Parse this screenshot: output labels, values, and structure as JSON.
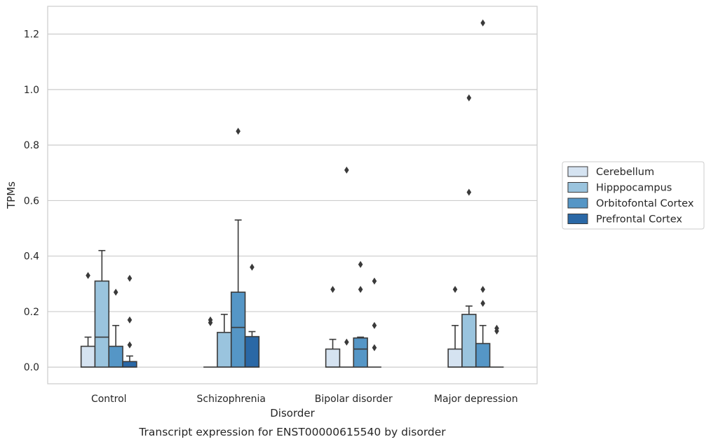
{
  "chart_data": {
    "type": "box",
    "title": "",
    "caption": "Transcript expression for ENST00000615540 by disorder",
    "xlabel": "Disorder",
    "ylabel": "TPMs",
    "ylim": [
      -0.06,
      1.3
    ],
    "yticks": [
      0.0,
      0.2,
      0.4,
      0.6,
      0.8,
      1.0,
      1.2
    ],
    "grid": "horizontal",
    "legend_position": "right",
    "categories": [
      "Control",
      "Schizophrenia",
      "Bipolar disorder",
      "Major depression"
    ],
    "series": [
      {
        "name": "Cerebellum",
        "color": "#d5e3f1",
        "boxes": [
          {
            "q1": 0.0,
            "median": 0.0,
            "q3": 0.075,
            "whisker_low": 0.0,
            "whisker_high": 0.108,
            "outliers": [
              0.33
            ]
          },
          {
            "q1": 0.0,
            "median": 0.0,
            "q3": 0.0,
            "whisker_low": 0.0,
            "whisker_high": 0.0,
            "outliers": [
              0.16,
              0.17
            ]
          },
          {
            "q1": 0.0,
            "median": 0.0,
            "q3": 0.065,
            "whisker_low": 0.0,
            "whisker_high": 0.1,
            "outliers": [
              0.28
            ]
          },
          {
            "q1": 0.0,
            "median": 0.0,
            "q3": 0.065,
            "whisker_low": 0.0,
            "whisker_high": 0.15,
            "outliers": [
              0.28
            ]
          }
        ]
      },
      {
        "name": "Hipppocampus",
        "color": "#9ac4de",
        "boxes": [
          {
            "q1": 0.0,
            "median": 0.108,
            "q3": 0.31,
            "whisker_low": 0.0,
            "whisker_high": 0.42,
            "outliers": []
          },
          {
            "q1": 0.0,
            "median": 0.0,
            "q3": 0.125,
            "whisker_low": 0.0,
            "whisker_high": 0.19,
            "outliers": []
          },
          {
            "q1": 0.0,
            "median": 0.0,
            "q3": 0.0,
            "whisker_low": 0.0,
            "whisker_high": 0.0,
            "outliers": [
              0.09,
              0.71
            ]
          },
          {
            "q1": 0.0,
            "median": 0.0,
            "q3": 0.19,
            "whisker_low": 0.0,
            "whisker_high": 0.22,
            "outliers": [
              0.63,
              0.97
            ]
          }
        ]
      },
      {
        "name": "Orbitofontal Cortex",
        "color": "#5596c6",
        "boxes": [
          {
            "q1": 0.0,
            "median": 0.0,
            "q3": 0.075,
            "whisker_low": 0.0,
            "whisker_high": 0.15,
            "outliers": [
              0.27
            ]
          },
          {
            "q1": 0.0,
            "median": 0.143,
            "q3": 0.27,
            "whisker_low": 0.0,
            "whisker_high": 0.53,
            "outliers": [
              0.85
            ]
          },
          {
            "q1": 0.0,
            "median": 0.065,
            "q3": 0.105,
            "whisker_low": 0.0,
            "whisker_high": 0.108,
            "outliers": [
              0.28,
              0.37
            ]
          },
          {
            "q1": 0.0,
            "median": 0.0,
            "q3": 0.085,
            "whisker_low": 0.0,
            "whisker_high": 0.15,
            "outliers": [
              0.23,
              0.28,
              1.24
            ]
          }
        ]
      },
      {
        "name": "Prefrontal Cortex",
        "color": "#2a68a6",
        "boxes": [
          {
            "q1": 0.0,
            "median": 0.0,
            "q3": 0.02,
            "whisker_low": 0.0,
            "whisker_high": 0.04,
            "outliers": [
              0.08,
              0.17,
              0.32
            ]
          },
          {
            "q1": 0.0,
            "median": 0.0,
            "q3": 0.11,
            "whisker_low": 0.0,
            "whisker_high": 0.128,
            "outliers": [
              0.36
            ]
          },
          {
            "q1": 0.0,
            "median": 0.0,
            "q3": 0.0,
            "whisker_low": 0.0,
            "whisker_high": 0.0,
            "outliers": [
              0.07,
              0.15,
              0.31
            ]
          },
          {
            "q1": 0.0,
            "median": 0.0,
            "q3": 0.0,
            "whisker_low": 0.0,
            "whisker_high": 0.0,
            "outliers": [
              0.13,
              0.14
            ]
          }
        ]
      }
    ]
  }
}
